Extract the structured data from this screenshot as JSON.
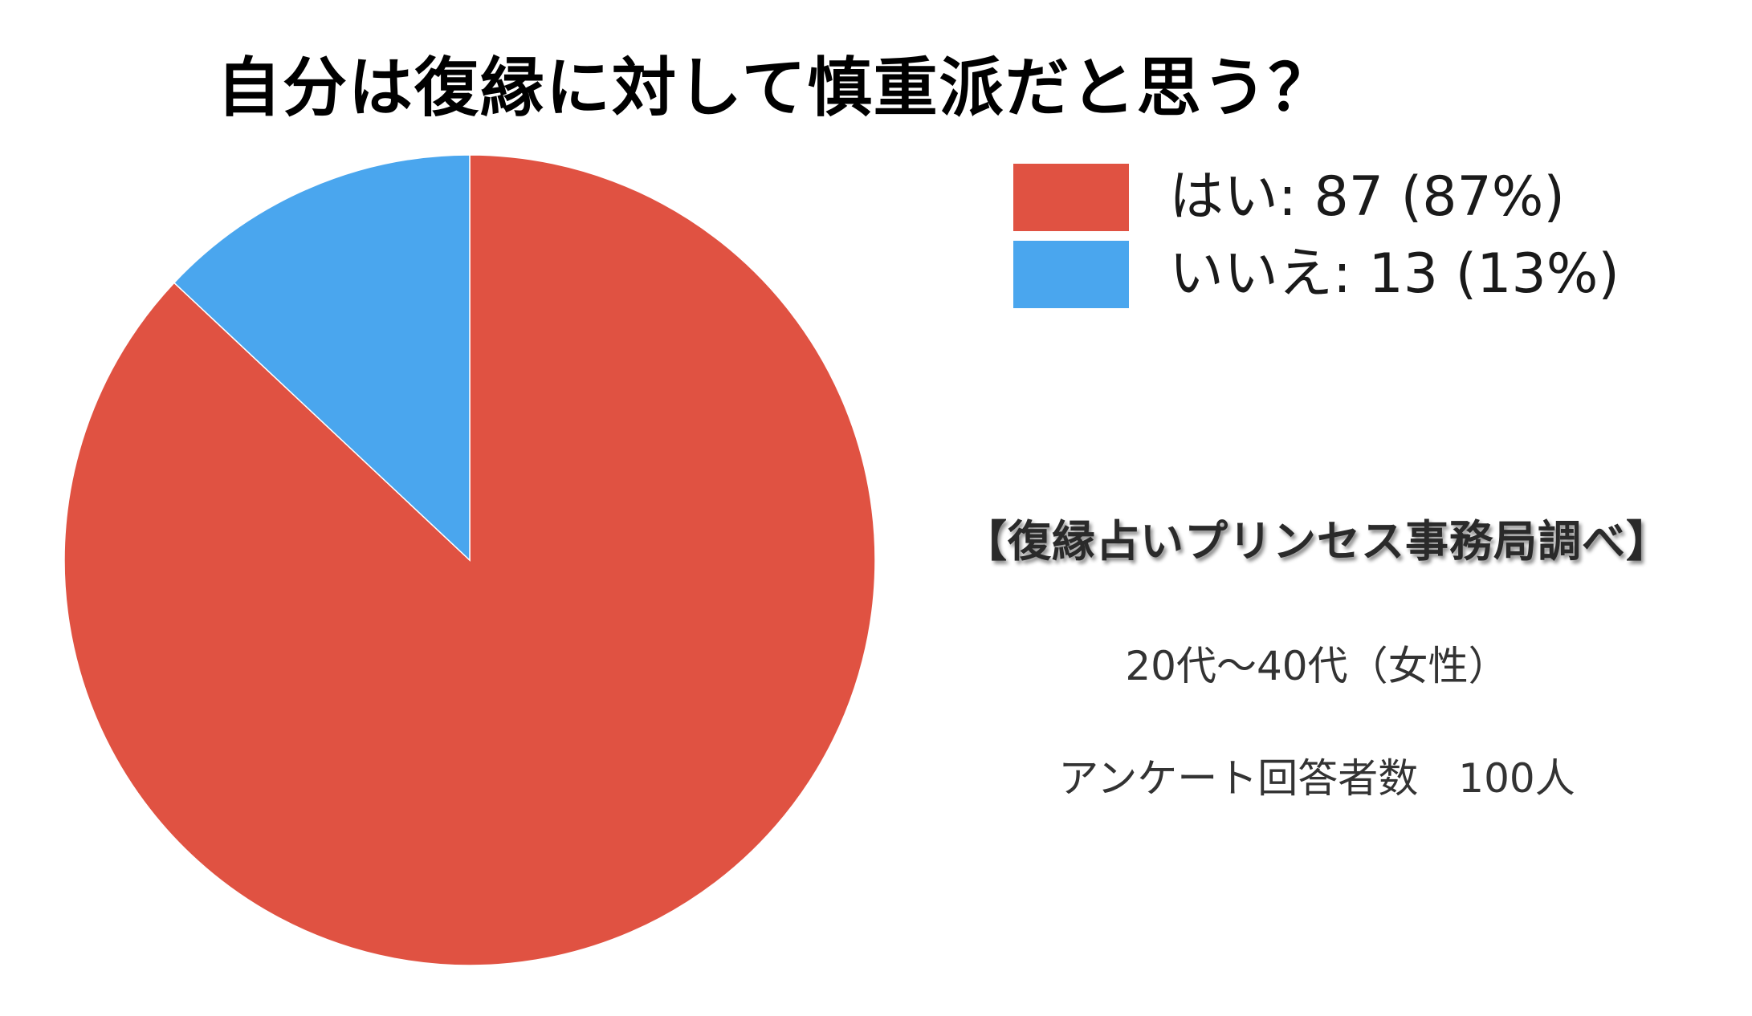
{
  "chart_data": {
    "type": "pie",
    "title": "自分は復縁に対して慎重派だと思う？",
    "slices": [
      {
        "label": "はい",
        "value": 87,
        "percent": "87%",
        "color": "#E05242"
      },
      {
        "label": "いいえ",
        "value": 13,
        "percent": "13%",
        "color": "#4AA6EE"
      }
    ],
    "legend_labels": [
      "はい: 87 (87%)",
      "いいえ: 13 (13%)"
    ],
    "legend_position": "top-right",
    "start": "12 o'clock, clockwise"
  },
  "annotations": {
    "source": "【復縁占いプリンセス事務局調べ】",
    "demographic": "20代〜40代（女性）",
    "respondents": "アンケート回答者数　100人"
  }
}
